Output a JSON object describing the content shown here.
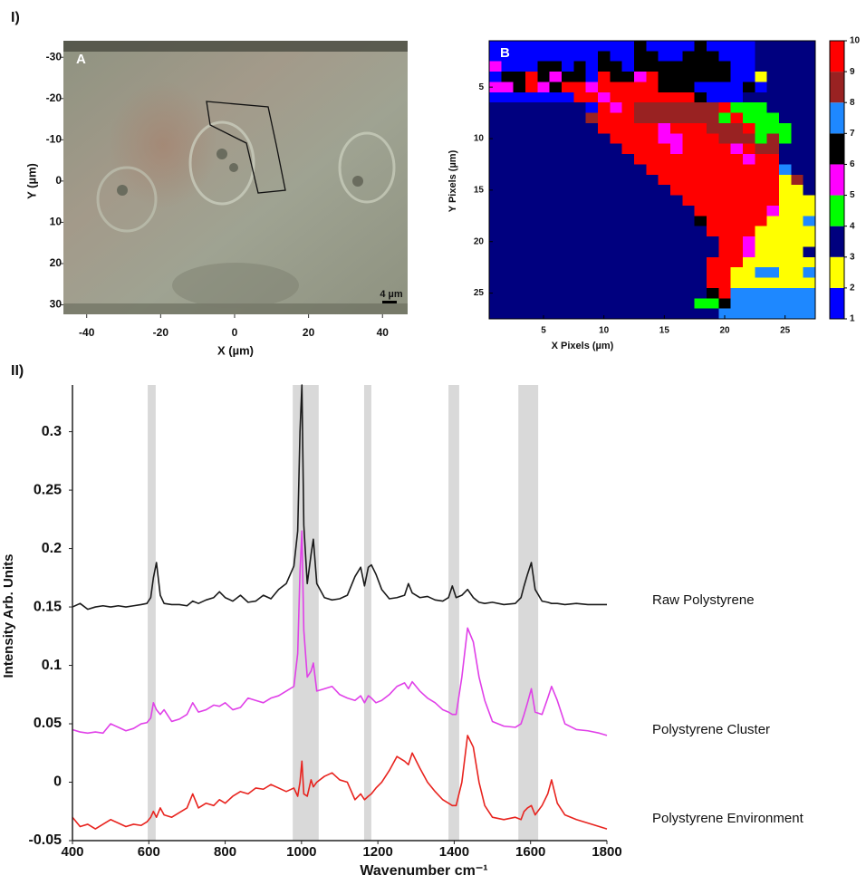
{
  "figure_labels": [
    "I)",
    "II)"
  ],
  "chart_data": [
    {
      "type": "image",
      "panel_label": "A",
      "xlabel": "X (µm)",
      "ylabel": "Y (µm)",
      "xlim": [
        -46.3,
        46.8
      ],
      "xticks": [
        -40,
        -20,
        0,
        20,
        40
      ],
      "ylim": [
        -34,
        32.3
      ],
      "yticks": [
        -30,
        -20,
        -10,
        0,
        10,
        20,
        30
      ],
      "scale_bar": "4 µm"
    },
    {
      "type": "heatmap",
      "panel_label": "B",
      "xlabel": "X Pixels (µm)",
      "ylabel": "Y Pixels (µm)",
      "xlim": [
        0.5,
        27.5
      ],
      "xticks": [
        5,
        10,
        15,
        20,
        25
      ],
      "ylim": [
        0.5,
        27.5
      ],
      "yticks": [
        5,
        10,
        15,
        20,
        25
      ],
      "colorbar_ticks": [
        1,
        2,
        3,
        4,
        5,
        6,
        7,
        8,
        9,
        10
      ],
      "colors": [
        "#0000ff",
        "#ffff00",
        "#00007f",
        "#00ff00",
        "#ff00ff",
        "#000000",
        "#1e88ff",
        "#992222",
        "#ff0000"
      ],
      "z": [
        [
          1,
          1,
          1,
          1,
          1,
          1,
          1,
          1,
          1,
          1,
          1,
          1,
          6,
          1,
          1,
          1,
          1,
          6,
          1,
          1,
          1,
          1,
          3,
          3,
          3,
          3,
          3
        ],
        [
          1,
          1,
          1,
          1,
          1,
          1,
          1,
          1,
          1,
          6,
          1,
          1,
          6,
          6,
          1,
          1,
          6,
          6,
          6,
          1,
          1,
          1,
          3,
          3,
          3,
          3,
          3
        ],
        [
          5,
          1,
          1,
          1,
          6,
          6,
          1,
          6,
          1,
          6,
          6,
          1,
          6,
          6,
          6,
          6,
          6,
          6,
          6,
          6,
          1,
          1,
          3,
          3,
          3,
          3,
          3
        ],
        [
          1,
          6,
          6,
          9,
          6,
          5,
          6,
          6,
          1,
          9,
          6,
          6,
          5,
          9,
          6,
          6,
          6,
          6,
          6,
          6,
          1,
          1,
          2,
          3,
          3,
          3,
          3
        ],
        [
          5,
          5,
          6,
          9,
          5,
          6,
          9,
          9,
          5,
          9,
          9,
          9,
          9,
          9,
          6,
          6,
          6,
          1,
          1,
          1,
          1,
          6,
          1,
          3,
          3,
          3,
          3
        ],
        [
          1,
          1,
          1,
          1,
          1,
          1,
          1,
          9,
          9,
          5,
          9,
          9,
          9,
          9,
          9,
          9,
          9,
          6,
          1,
          1,
          1,
          3,
          3,
          3,
          3,
          3,
          3
        ],
        [
          3,
          3,
          3,
          3,
          3,
          3,
          3,
          3,
          1,
          9,
          5,
          9,
          8,
          8,
          8,
          8,
          8,
          8,
          8,
          9,
          4,
          4,
          4,
          3,
          3,
          3,
          3
        ],
        [
          3,
          3,
          3,
          3,
          3,
          3,
          3,
          3,
          8,
          9,
          9,
          9,
          8,
          8,
          8,
          8,
          8,
          8,
          8,
          4,
          9,
          4,
          4,
          4,
          3,
          3,
          3
        ],
        [
          3,
          3,
          3,
          3,
          3,
          3,
          3,
          3,
          3,
          9,
          9,
          9,
          9,
          9,
          5,
          9,
          9,
          9,
          8,
          8,
          8,
          9,
          4,
          4,
          4,
          3,
          3
        ],
        [
          3,
          3,
          3,
          3,
          3,
          3,
          3,
          3,
          3,
          3,
          9,
          9,
          9,
          9,
          5,
          5,
          9,
          9,
          9,
          8,
          8,
          8,
          4,
          8,
          4,
          3,
          3
        ],
        [
          3,
          3,
          3,
          3,
          3,
          3,
          3,
          3,
          3,
          3,
          3,
          9,
          9,
          9,
          9,
          5,
          9,
          9,
          9,
          9,
          5,
          9,
          8,
          8,
          3,
          3,
          3
        ],
        [
          3,
          3,
          3,
          3,
          3,
          3,
          3,
          3,
          3,
          3,
          3,
          3,
          9,
          9,
          9,
          9,
          9,
          9,
          9,
          9,
          9,
          5,
          9,
          9,
          3,
          3,
          3
        ],
        [
          3,
          3,
          3,
          3,
          3,
          3,
          3,
          3,
          3,
          3,
          3,
          3,
          3,
          9,
          9,
          9,
          9,
          9,
          9,
          9,
          9,
          9,
          9,
          9,
          7,
          3,
          3
        ],
        [
          3,
          3,
          3,
          3,
          3,
          3,
          3,
          3,
          3,
          3,
          3,
          3,
          3,
          3,
          9,
          9,
          9,
          9,
          9,
          9,
          9,
          9,
          9,
          9,
          2,
          8,
          3
        ],
        [
          3,
          3,
          3,
          3,
          3,
          3,
          3,
          3,
          3,
          3,
          3,
          3,
          3,
          3,
          3,
          9,
          9,
          9,
          9,
          9,
          9,
          9,
          9,
          9,
          2,
          2,
          3
        ],
        [
          3,
          3,
          3,
          3,
          3,
          3,
          3,
          3,
          3,
          3,
          3,
          3,
          3,
          3,
          3,
          3,
          9,
          9,
          9,
          9,
          9,
          9,
          9,
          9,
          2,
          2,
          2
        ],
        [
          3,
          3,
          3,
          3,
          3,
          3,
          3,
          3,
          3,
          3,
          3,
          3,
          3,
          3,
          3,
          3,
          3,
          9,
          9,
          9,
          9,
          9,
          9,
          5,
          2,
          2,
          2
        ],
        [
          3,
          3,
          3,
          3,
          3,
          3,
          3,
          3,
          3,
          3,
          3,
          3,
          3,
          3,
          3,
          3,
          3,
          6,
          9,
          9,
          9,
          9,
          9,
          2,
          2,
          2,
          7
        ],
        [
          3,
          3,
          3,
          3,
          3,
          3,
          3,
          3,
          3,
          3,
          3,
          3,
          3,
          3,
          3,
          3,
          3,
          3,
          9,
          9,
          9,
          9,
          2,
          2,
          2,
          2,
          2
        ],
        [
          3,
          3,
          3,
          3,
          3,
          3,
          3,
          3,
          3,
          3,
          3,
          3,
          3,
          3,
          3,
          3,
          3,
          3,
          3,
          9,
          9,
          5,
          2,
          2,
          2,
          2,
          2
        ],
        [
          3,
          3,
          3,
          3,
          3,
          3,
          3,
          3,
          3,
          3,
          3,
          3,
          3,
          3,
          3,
          3,
          3,
          3,
          3,
          9,
          9,
          5,
          2,
          2,
          2,
          2,
          3
        ],
        [
          3,
          3,
          3,
          3,
          3,
          3,
          3,
          3,
          3,
          3,
          3,
          3,
          3,
          3,
          3,
          3,
          3,
          3,
          9,
          9,
          9,
          2,
          2,
          2,
          2,
          2,
          2
        ],
        [
          3,
          3,
          3,
          3,
          3,
          3,
          3,
          3,
          3,
          3,
          3,
          3,
          3,
          3,
          3,
          3,
          3,
          3,
          9,
          9,
          2,
          2,
          7,
          7,
          2,
          2,
          7
        ],
        [
          3,
          3,
          3,
          3,
          3,
          3,
          3,
          3,
          3,
          3,
          3,
          3,
          3,
          3,
          3,
          3,
          3,
          3,
          9,
          9,
          2,
          2,
          2,
          2,
          2,
          2,
          2
        ],
        [
          3,
          3,
          3,
          3,
          3,
          3,
          3,
          3,
          3,
          3,
          3,
          3,
          3,
          3,
          3,
          3,
          3,
          3,
          6,
          9,
          7,
          7,
          7,
          7,
          7,
          7,
          7
        ],
        [
          3,
          3,
          3,
          3,
          3,
          3,
          3,
          3,
          3,
          3,
          3,
          3,
          3,
          3,
          3,
          3,
          3,
          4,
          4,
          6,
          7,
          7,
          7,
          7,
          7,
          7,
          7
        ],
        [
          3,
          3,
          3,
          3,
          3,
          3,
          3,
          3,
          3,
          3,
          3,
          3,
          3,
          3,
          3,
          3,
          3,
          3,
          3,
          7,
          7,
          7,
          7,
          7,
          7,
          7,
          7
        ]
      ]
    },
    {
      "type": "line",
      "xlabel": "Wavenumber cm⁻¹",
      "ylabel": "Intensity Arb. Units",
      "xlim": [
        400,
        1800
      ],
      "xticks": [
        400,
        600,
        800,
        1000,
        1200,
        1400,
        1600,
        1800
      ],
      "ylim": [
        -0.05,
        0.34
      ],
      "yticks": [
        -0.05,
        0,
        0.05,
        0.1,
        0.15,
        0.2,
        0.25,
        0.3
      ],
      "highlight_bands": [
        [
          597,
          618
        ],
        [
          977,
          1045
        ],
        [
          1164,
          1183
        ],
        [
          1385,
          1413
        ],
        [
          1568,
          1620
        ]
      ],
      "x": [
        400,
        420,
        440,
        460,
        480,
        500,
        520,
        540,
        560,
        580,
        595,
        605,
        612,
        620,
        630,
        640,
        660,
        680,
        700,
        715,
        730,
        750,
        770,
        785,
        800,
        820,
        840,
        860,
        880,
        900,
        920,
        940,
        960,
        980,
        990,
        996,
        1001,
        1006,
        1015,
        1025,
        1031,
        1040,
        1060,
        1080,
        1100,
        1120,
        1140,
        1155,
        1165,
        1175,
        1183,
        1195,
        1210,
        1230,
        1250,
        1270,
        1280,
        1290,
        1310,
        1330,
        1350,
        1370,
        1385,
        1395,
        1405,
        1420,
        1435,
        1450,
        1465,
        1480,
        1500,
        1530,
        1560,
        1575,
        1583,
        1592,
        1602,
        1612,
        1630,
        1645,
        1655,
        1670,
        1690,
        1720,
        1750,
        1780,
        1800
      ],
      "series": [
        {
          "name": "Raw Polystyrene",
          "color": "#1a1a1a",
          "values": [
            0.15,
            0.153,
            0.148,
            0.15,
            0.151,
            0.15,
            0.151,
            0.15,
            0.151,
            0.152,
            0.153,
            0.158,
            0.175,
            0.188,
            0.16,
            0.153,
            0.152,
            0.152,
            0.151,
            0.155,
            0.153,
            0.156,
            0.158,
            0.163,
            0.158,
            0.155,
            0.16,
            0.154,
            0.155,
            0.16,
            0.157,
            0.165,
            0.17,
            0.185,
            0.215,
            0.3,
            0.34,
            0.22,
            0.17,
            0.195,
            0.208,
            0.17,
            0.158,
            0.156,
            0.157,
            0.16,
            0.176,
            0.184,
            0.168,
            0.184,
            0.186,
            0.178,
            0.165,
            0.157,
            0.158,
            0.16,
            0.17,
            0.162,
            0.158,
            0.159,
            0.156,
            0.155,
            0.158,
            0.168,
            0.158,
            0.16,
            0.165,
            0.158,
            0.154,
            0.153,
            0.154,
            0.152,
            0.153,
            0.158,
            0.168,
            0.178,
            0.188,
            0.165,
            0.155,
            0.154,
            0.153,
            0.153,
            0.152,
            0.153,
            0.152,
            0.152,
            0.152
          ]
        },
        {
          "name": "Polystyrene Cluster",
          "color": "#e040e8",
          "values": [
            0.045,
            0.043,
            0.042,
            0.043,
            0.042,
            0.05,
            0.047,
            0.044,
            0.046,
            0.05,
            0.051,
            0.055,
            0.068,
            0.062,
            0.058,
            0.062,
            0.052,
            0.054,
            0.058,
            0.068,
            0.06,
            0.062,
            0.066,
            0.065,
            0.068,
            0.062,
            0.064,
            0.072,
            0.07,
            0.068,
            0.072,
            0.074,
            0.078,
            0.082,
            0.11,
            0.18,
            0.215,
            0.13,
            0.09,
            0.095,
            0.102,
            0.078,
            0.08,
            0.082,
            0.075,
            0.072,
            0.07,
            0.074,
            0.068,
            0.074,
            0.072,
            0.068,
            0.07,
            0.075,
            0.082,
            0.085,
            0.08,
            0.086,
            0.078,
            0.072,
            0.068,
            0.062,
            0.06,
            0.058,
            0.058,
            0.09,
            0.132,
            0.12,
            0.09,
            0.07,
            0.052,
            0.048,
            0.047,
            0.05,
            0.058,
            0.068,
            0.08,
            0.06,
            0.058,
            0.072,
            0.082,
            0.07,
            0.05,
            0.045,
            0.044,
            0.042,
            0.04
          ]
        },
        {
          "name": "Polystyrene Environment",
          "color": "#e8231e",
          "values": [
            -0.03,
            -0.038,
            -0.036,
            -0.04,
            -0.036,
            -0.032,
            -0.035,
            -0.038,
            -0.036,
            -0.037,
            -0.034,
            -0.03,
            -0.025,
            -0.03,
            -0.022,
            -0.028,
            -0.03,
            -0.026,
            -0.022,
            -0.01,
            -0.022,
            -0.018,
            -0.02,
            -0.015,
            -0.018,
            -0.012,
            -0.008,
            -0.01,
            -0.005,
            -0.006,
            -0.002,
            -0.005,
            -0.008,
            -0.005,
            -0.012,
            0.0,
            0.018,
            -0.01,
            -0.012,
            0.002,
            -0.004,
            0.0,
            0.005,
            0.008,
            0.002,
            0.0,
            -0.015,
            -0.01,
            -0.015,
            -0.012,
            -0.01,
            -0.005,
            0.0,
            0.01,
            0.022,
            0.018,
            0.015,
            0.025,
            0.012,
            0.0,
            -0.008,
            -0.015,
            -0.018,
            -0.02,
            -0.02,
            0.0,
            0.04,
            0.03,
            0.0,
            -0.02,
            -0.03,
            -0.032,
            -0.03,
            -0.032,
            -0.025,
            -0.022,
            -0.02,
            -0.028,
            -0.02,
            -0.01,
            0.002,
            -0.018,
            -0.028,
            -0.032,
            -0.035,
            -0.038,
            -0.04
          ]
        }
      ]
    }
  ]
}
